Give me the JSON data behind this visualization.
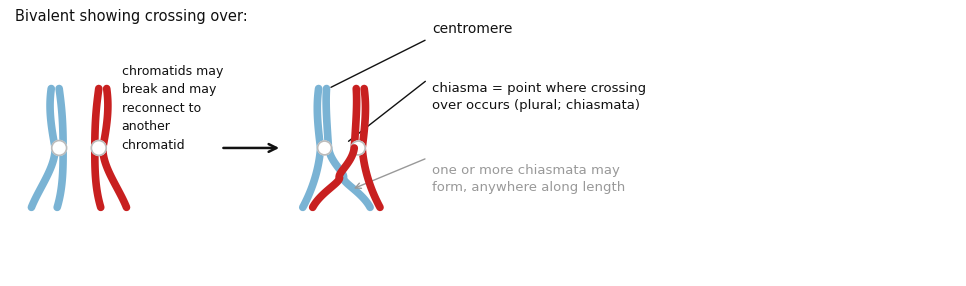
{
  "bg_color": "#ffffff",
  "blue_color": "#7ab3d4",
  "red_color": "#c82020",
  "dark_color": "#111111",
  "centromere_fill": "#ffffff",
  "centromere_edge": "#bbbbbb",
  "label_title": "Bivalent showing crossing over:",
  "label_chromatids": "chromatids may\nbreak and may\nreconnect to\nanother\nchromatid",
  "label_centromere": "centromere",
  "label_chiasma": "chiasma = point where crossing\nover occurs (plural; chiasmata)",
  "label_chiasmata": "one or more chiasmata may\nform, anywhere along length",
  "text_color": "#111111",
  "gray_text_color": "#999999"
}
